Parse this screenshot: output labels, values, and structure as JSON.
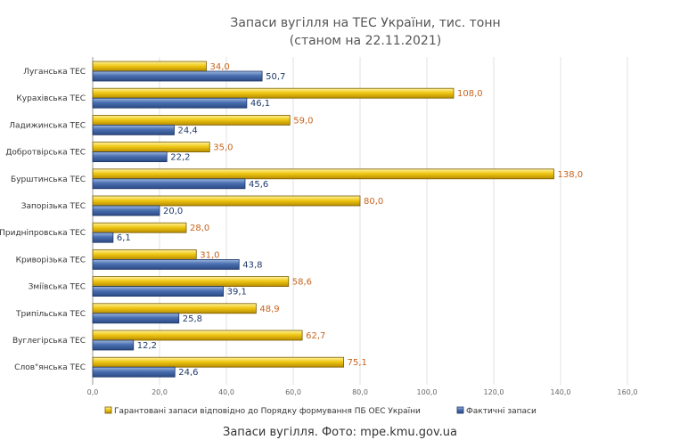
{
  "chart_data": {
    "type": "bar",
    "orientation": "horizontal",
    "title": "Запаси вугілля на ТЕС України, тис. тонн",
    "subtitle": "(станом на 22.11.2021)",
    "categories": [
      "Луганська ТЕС",
      "Курахівська ТЕС",
      "Ладижинська ТЕС",
      "Добротвірська ТЕС",
      "Бурштинська ТЕС",
      "Запорізька ТЕС",
      "Придніпровська ТЕС",
      "Криворізька ТЕС",
      "Зміївська ТЕС",
      "Трипільська ТЕС",
      "Вуглегірська ТЕС",
      "Слов\"янська ТЕС"
    ],
    "series": [
      {
        "name": "Гарантовані запаси відповідно до Порядку формування ПБ ОЕС України",
        "color": "#e8bc0c",
        "label_color": "#c8641e",
        "values": [
          34.0,
          108.0,
          59.0,
          35.0,
          138.0,
          80.0,
          28.0,
          31.0,
          58.6,
          48.9,
          62.7,
          75.1
        ],
        "labels": [
          "34,0",
          "108,0",
          "59,0",
          "35,0",
          "138,0",
          "80,0",
          "28,0",
          "31,0",
          "58,6",
          "48,9",
          "62,7",
          "75,1"
        ]
      },
      {
        "name": "Фактичні запаси",
        "color": "#4a6fb0",
        "label_color": "#1f3a6a",
        "values": [
          50.7,
          46.1,
          24.4,
          22.2,
          45.6,
          20.0,
          6.1,
          43.8,
          39.1,
          25.8,
          12.2,
          24.6
        ],
        "labels": [
          "50,7",
          "46,1",
          "24,4",
          "22,2",
          "45,6",
          "20,0",
          "6,1",
          "43,8",
          "39,1",
          "25,8",
          "12,2",
          "24,6"
        ]
      }
    ],
    "x_ticks": [
      0,
      20,
      40,
      60,
      80,
      100,
      120,
      140,
      160
    ],
    "x_tick_labels": [
      "0,0",
      "20,0",
      "40,0",
      "60,0",
      "80,0",
      "100,0",
      "120,0",
      "140,0",
      "160,0"
    ],
    "xlim": [
      0,
      160
    ],
    "grid": true,
    "legend_position": "bottom"
  },
  "caption": "Запаси вугілля. Фото: mpe.kmu.gov.ua"
}
